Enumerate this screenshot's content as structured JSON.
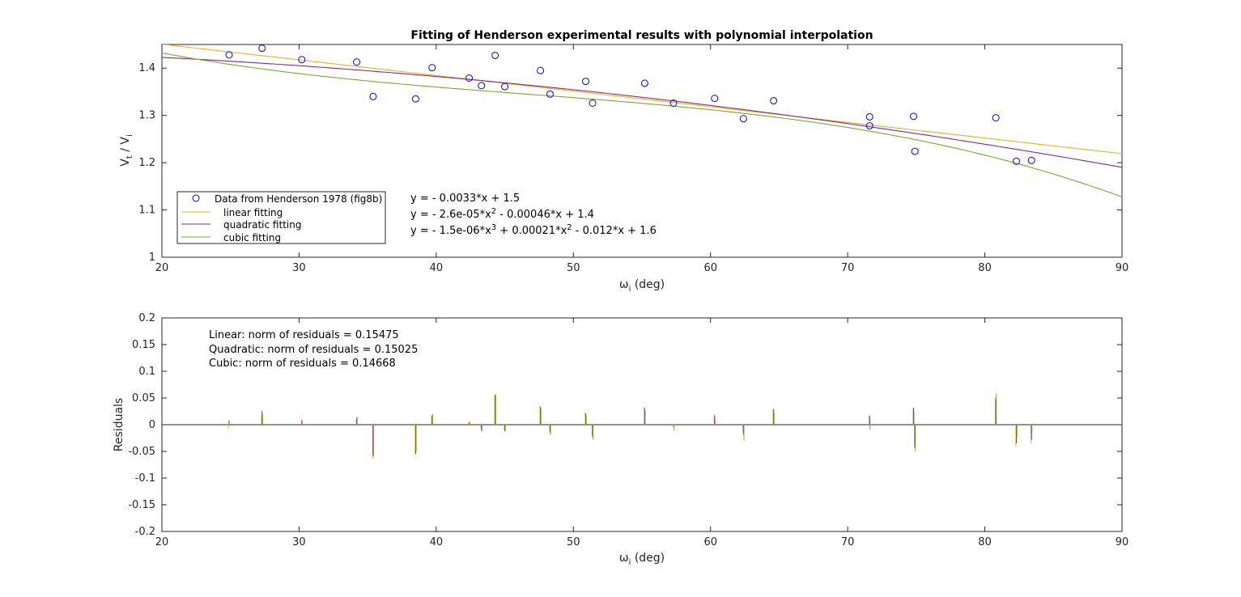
{
  "chart_data": [
    {
      "type": "scatter",
      "title": "Fitting of Henderson experimental results with polynomial interpolation",
      "xlabel_main": "ω",
      "xlabel_sub": "i",
      "xlabel_unit": " (deg)",
      "ylabel_parts": [
        "V",
        "t",
        " / V",
        "i"
      ],
      "xlim": [
        20,
        90
      ],
      "ylim": [
        1,
        1.45
      ],
      "x_ticks": [
        20,
        30,
        40,
        50,
        60,
        70,
        80,
        90
      ],
      "y_ticks": [
        1,
        1.1,
        1.2,
        1.3,
        1.4
      ],
      "x_tick_labels": [
        "20",
        "30",
        "40",
        "50",
        "60",
        "70",
        "80",
        "90"
      ],
      "y_tick_labels": [
        "1",
        "1.1",
        "1.2",
        "1.3",
        "1.4"
      ],
      "grid": false,
      "legend_position": "lower-left",
      "series": [
        {
          "name": "Data from Henderson 1978 (fig8b)",
          "kind": "markers",
          "color": "#0000ff",
          "x": [
            24.9,
            27.3,
            30.2,
            34.2,
            35.4,
            38.5,
            39.7,
            42.4,
            43.3,
            44.3,
            45.0,
            47.6,
            48.3,
            50.9,
            51.4,
            55.2,
            57.3,
            60.3,
            62.4,
            64.6,
            71.6,
            71.6,
            74.8,
            74.9,
            80.8,
            82.3,
            83.4
          ],
          "y": [
            1.428,
            1.442,
            1.418,
            1.413,
            1.34,
            1.335,
            1.401,
            1.379,
            1.363,
            1.427,
            1.361,
            1.395,
            1.345,
            1.372,
            1.326,
            1.368,
            1.326,
            1.336,
            1.293,
            1.331,
            1.297,
            1.278,
            1.298,
            1.224,
            1.295,
            1.203,
            1.205
          ]
        },
        {
          "name": "linear fitting",
          "kind": "line",
          "color": "#edb120",
          "coefficients": [
            -0.003307,
            1.5167
          ]
        },
        {
          "name": "quadratic fitting",
          "kind": "line",
          "color": "#7e2f8e",
          "coefficients": [
            -2.6e-05,
            -0.000462,
            1.4424
          ]
        },
        {
          "name": "cubic fitting",
          "kind": "line",
          "color": "#77ac30",
          "coefficients": [
            -1.5e-06,
            0.00021,
            -0.012,
            1.6
          ]
        }
      ],
      "equations": [
        [
          "y = - 0.0033*x + 1.5"
        ],
        [
          "y = - 2.6e-05*x",
          "2",
          " - 0.00046*x + 1.4"
        ],
        [
          "y = - 1.5e-06*x",
          "3",
          " + 0.00021*x",
          "2",
          " - 0.012*x + 1.6"
        ]
      ]
    },
    {
      "type": "bar",
      "title": "",
      "xlabel_main": "ω",
      "xlabel_sub": "i",
      "xlabel_unit": " (deg)",
      "ylabel": "Residuals",
      "xlim": [
        20,
        90
      ],
      "ylim": [
        -0.2,
        0.2
      ],
      "x_ticks": [
        20,
        30,
        40,
        50,
        60,
        70,
        80,
        90
      ],
      "y_ticks": [
        -0.2,
        -0.15,
        -0.1,
        -0.05,
        0,
        0.05,
        0.1,
        0.15,
        0.2
      ],
      "x_tick_labels": [
        "20",
        "30",
        "40",
        "50",
        "60",
        "70",
        "80",
        "90"
      ],
      "y_tick_labels": [
        "-0.2",
        "-0.15",
        "-0.1",
        "-0.05",
        "0",
        "0.05",
        "0.1",
        "0.15",
        "0.2"
      ],
      "grid": false,
      "norms": [
        "Linear: norm of residuals = 0.15475",
        "Quadratic: norm of residuals = 0.15025",
        "Cubic: norm of residuals = 0.14668"
      ],
      "series": [
        {
          "name": "Linear",
          "color": "#edb120",
          "x": [
            24.9,
            27.3,
            30.2,
            34.2,
            35.4,
            38.5,
            39.7,
            42.4,
            43.3,
            44.3,
            45.0,
            47.6,
            48.3,
            50.9,
            51.4,
            55.2,
            57.3,
            60.3,
            62.4,
            64.6,
            71.6,
            71.6,
            74.8,
            74.9,
            80.8,
            82.3,
            83.4
          ],
          "values": [
            -0.006,
            0.016,
            0.001,
            0.009,
            -0.063,
            -0.057,
            0.018,
            0.005,
            -0.008,
            0.057,
            -0.009,
            0.036,
            -0.012,
            0.024,
            -0.02,
            0.034,
            -0.001,
            0.02,
            -0.016,
            0.03,
            0.017,
            -0.002,
            0.03,
            -0.044,
            0.046,
            -0.041,
            -0.035
          ]
        },
        {
          "name": "Quadratic",
          "color": "#7e2f8e",
          "x": [
            24.9,
            27.3,
            30.2,
            34.2,
            35.4,
            38.5,
            39.7,
            42.4,
            43.3,
            44.3,
            45.0,
            47.6,
            48.3,
            50.9,
            51.4,
            55.2,
            57.3,
            60.3,
            62.4,
            64.6,
            71.6,
            71.6,
            74.8,
            74.9,
            80.8,
            82.3,
            83.4
          ],
          "values": [
            0.008,
            0.026,
            0.009,
            0.013,
            -0.057,
            -0.054,
            0.017,
            0.003,
            -0.011,
            0.055,
            -0.012,
            0.033,
            -0.015,
            0.021,
            -0.023,
            0.031,
            -0.004,
            0.017,
            -0.018,
            0.029,
            0.017,
            -0.002,
            0.032,
            -0.042,
            0.051,
            -0.035,
            -0.028
          ]
        },
        {
          "name": "Cubic",
          "color": "#77ac30",
          "x": [
            24.9,
            27.3,
            30.2,
            34.2,
            35.4,
            38.5,
            39.7,
            42.4,
            43.3,
            44.3,
            45.0,
            47.6,
            48.3,
            50.9,
            51.4,
            55.2,
            57.3,
            60.3,
            62.4,
            64.6,
            71.6,
            71.6,
            74.8,
            74.9,
            80.8,
            82.3,
            83.4
          ],
          "values": [
            0.002,
            0.022,
            0.007,
            0.015,
            -0.06,
            -0.051,
            0.02,
            0.006,
            -0.013,
            0.057,
            -0.013,
            0.03,
            -0.019,
            0.016,
            -0.028,
            0.026,
            -0.011,
            0.01,
            -0.03,
            0.021,
            0.009,
            -0.01,
            0.025,
            -0.049,
            0.058,
            -0.025,
            -0.016
          ]
        }
      ]
    }
  ]
}
